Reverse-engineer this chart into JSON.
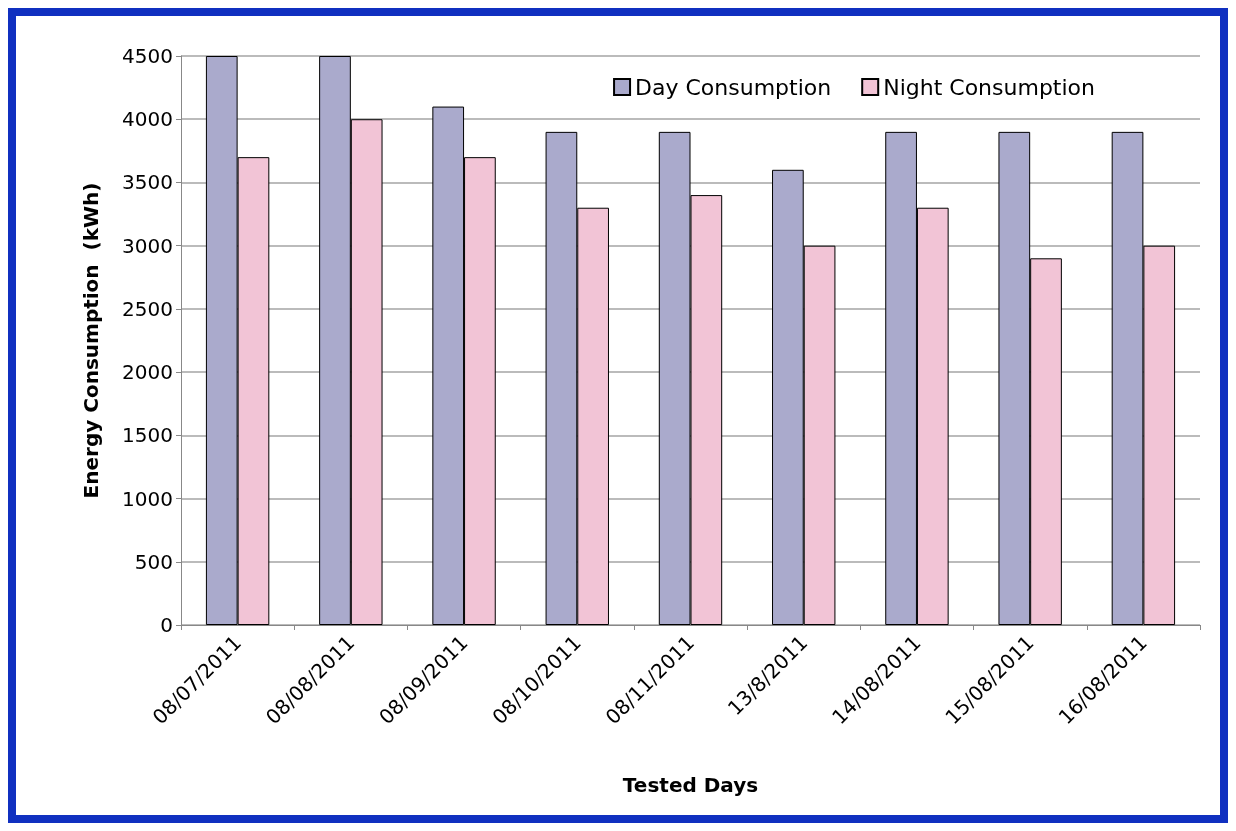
{
  "chart_data": {
    "type": "bar",
    "xlabel": "Tested Days",
    "ylabel": "Energy Consumption  (kWh)",
    "categories": [
      "08/07/2011",
      "08/08/2011",
      "08/09/2011",
      "08/10/2011",
      "08/11/2011",
      "13/8/2011",
      "14/08/2011",
      "15/08/2011",
      "16/08/2011"
    ],
    "series": [
      {
        "name": "Day Consumption",
        "color": "#aaaacc",
        "values": [
          4500,
          4500,
          4100,
          3900,
          3900,
          3600,
          3900,
          3900,
          3900
        ]
      },
      {
        "name": "Night Consumption",
        "color": "#f2c4d6",
        "values": [
          3700,
          4000,
          3700,
          3300,
          3400,
          3000,
          3300,
          2900,
          3000
        ]
      }
    ],
    "ylim": [
      0,
      4500
    ],
    "yticks": [
      0,
      500,
      1000,
      1500,
      2000,
      2500,
      3000,
      3500,
      4000,
      4500
    ],
    "grid": "y",
    "legend": "top right"
  }
}
